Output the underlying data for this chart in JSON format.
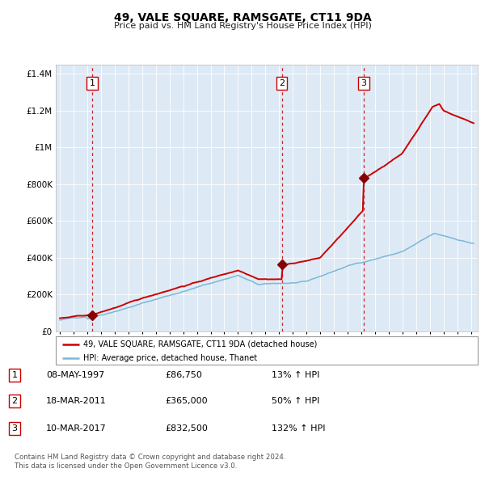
{
  "title": "49, VALE SQUARE, RAMSGATE, CT11 9DA",
  "subtitle": "Price paid vs. HM Land Registry's House Price Index (HPI)",
  "footer": "Contains HM Land Registry data © Crown copyright and database right 2024.\nThis data is licensed under the Open Government Licence v3.0.",
  "legend_line1": "49, VALE SQUARE, RAMSGATE, CT11 9DA (detached house)",
  "legend_line2": "HPI: Average price, detached house, Thanet",
  "sales": [
    {
      "num": 1,
      "date": "08-MAY-1997",
      "price": 86750,
      "price_str": "£86,750",
      "pct": "13%",
      "year_x": 1997.35
    },
    {
      "num": 2,
      "date": "18-MAR-2011",
      "price": 365000,
      "price_str": "£365,000",
      "pct": "50%",
      "year_x": 2011.2
    },
    {
      "num": 3,
      "date": "10-MAR-2017",
      "price": 832500,
      "price_str": "£832,500",
      "pct": "132%",
      "year_x": 2017.18
    }
  ],
  "hpi_color": "#7ab8d9",
  "price_color": "#cc0000",
  "sale_dot_color": "#880000",
  "vline_color": "#cc0000",
  "plot_bg": "#ddeaf5",
  "ylim": [
    0,
    1450000
  ],
  "xlim_start": 1994.7,
  "xlim_end": 2025.5
}
